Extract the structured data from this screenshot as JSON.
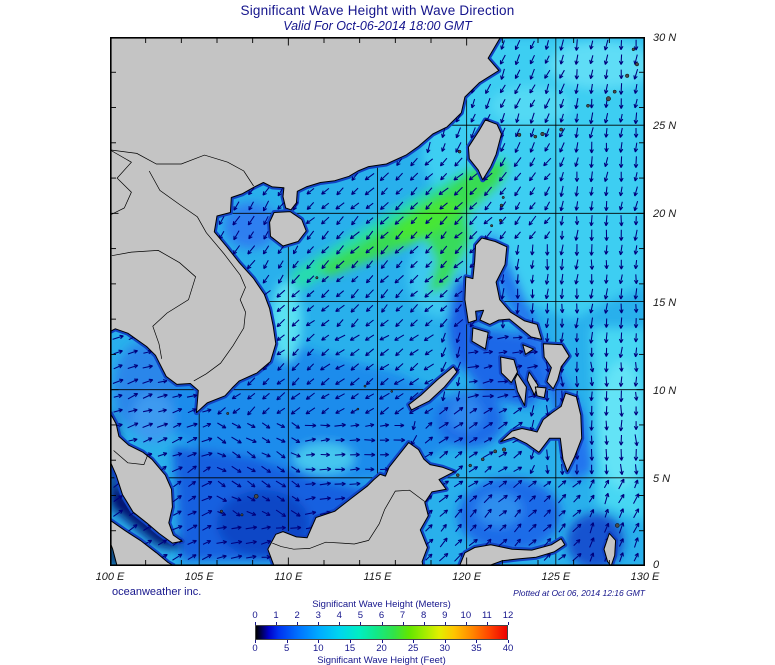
{
  "title": "Significant Wave Height with Wave Direction",
  "subtitle": "Valid For Oct-06-2014 18:00 GMT",
  "credit": "oceanweather inc.",
  "plotted_note": "Plotted at Oct 06, 2014 12:16 GMT",
  "axes": {
    "lon_labels": [
      "100 E",
      "105 E",
      "110 E",
      "115 E",
      "120 E",
      "125 E",
      "130 E"
    ],
    "lat_labels": [
      "30 N",
      "25 N",
      "20 N",
      "15 N",
      "10 N",
      "5 N",
      "0"
    ],
    "lon_range": [
      100,
      130
    ],
    "lat_range": [
      0,
      30
    ],
    "grid_step_deg": 5,
    "minor_tick_deg": 2
  },
  "colorbar": {
    "top_label": "Significant Wave Height (Meters)",
    "bottom_label": "Significant Wave Height (Feet)",
    "meters_ticks": [
      0,
      1,
      2,
      3,
      4,
      5,
      6,
      7,
      8,
      9,
      10,
      11,
      12
    ],
    "feet_ticks": [
      0,
      5,
      10,
      15,
      20,
      25,
      30,
      35,
      40
    ],
    "gradient_stops": [
      [
        0,
        "#000000"
      ],
      [
        0.02,
        "#00004a"
      ],
      [
        0.05,
        "#0000c8"
      ],
      [
        0.09,
        "#0032f0"
      ],
      [
        0.17,
        "#0073ff"
      ],
      [
        0.25,
        "#00aaff"
      ],
      [
        0.33,
        "#00d4f0"
      ],
      [
        0.41,
        "#00eec3"
      ],
      [
        0.48,
        "#12e887"
      ],
      [
        0.55,
        "#32e248"
      ],
      [
        0.61,
        "#62e600"
      ],
      [
        0.67,
        "#a0ec00"
      ],
      [
        0.73,
        "#e2ee00"
      ],
      [
        0.79,
        "#ffc400"
      ],
      [
        0.86,
        "#ff8800"
      ],
      [
        0.93,
        "#ff4400"
      ],
      [
        1,
        "#ee0000"
      ]
    ]
  },
  "map_style": {
    "land_color": "#c4c4c4",
    "land_edge": "#000000",
    "ocean_base": "#29b0ec",
    "arrow_color": "#00007d",
    "coast_shallow": "#1244c4",
    "grid_color": "#000000",
    "frame_color": "#000000",
    "axis_label_color": "#1a1a1a",
    "navy_text": "#16168c",
    "island_dot_color": "#4a4a4a"
  },
  "wave_zones": [
    {
      "area": "NE South China Sea / Luzon Strait band",
      "height_m": "4-6",
      "color": "green"
    },
    {
      "area": "East China Sea and outer Philippine Sea",
      "height_m": "2-3",
      "color": "cyan"
    },
    {
      "area": "Central South China Sea",
      "height_m": "2-3",
      "color": "cyan-blue"
    },
    {
      "area": "Gulf of Thailand and southern South China Sea",
      "height_m": "1-2",
      "color": "blue"
    },
    {
      "area": "Coastal margins and inner Philippine seas",
      "height_m": "0.5-1",
      "color": "dark blue"
    },
    {
      "area": "Malacca Strait and west of Sumatra",
      "height_m": "0-0.5",
      "color": "near black"
    }
  ],
  "arrow_field": [
    {
      "name": "gulf-of-thailand",
      "lon": [
        100,
        106
      ],
      "lat": [
        5.5,
        14
      ],
      "dir": 70
    },
    {
      "name": "south-gulf",
      "lon": [
        100,
        106
      ],
      "lat": [
        0,
        5.5
      ],
      "dir": 60
    },
    {
      "name": "sw-borneo",
      "lon": [
        106,
        110.5
      ],
      "lat": [
        2.5,
        8
      ],
      "dir": 120
    },
    {
      "name": "s-scs",
      "lon": [
        110.5,
        117
      ],
      "lat": [
        0.5,
        8
      ],
      "dir": 85
    },
    {
      "name": "karimata",
      "lon": [
        106,
        110.5
      ],
      "lat": [
        0,
        2.5
      ],
      "dir": 80
    },
    {
      "name": "gulf-of-tonkin",
      "lon": [
        104,
        111
      ],
      "lat": [
        15.5,
        22
      ],
      "dir": 215
    },
    {
      "name": "vietnam-coast",
      "lon": [
        104,
        112
      ],
      "lat": [
        8,
        15.5
      ],
      "dir": 230
    },
    {
      "name": "scs-mid",
      "lon": [
        110,
        118
      ],
      "lat": [
        8,
        13
      ],
      "dir": 235
    },
    {
      "name": "n-scs",
      "lon": [
        108,
        122
      ],
      "lat": [
        13,
        23.5
      ],
      "dir": 225
    },
    {
      "name": "taiwan-strait-ecs",
      "lon": [
        117,
        125.5
      ],
      "lat": [
        23,
        30
      ],
      "dir": 203
    },
    {
      "name": "ecs-east",
      "lon": [
        125.5,
        130
      ],
      "lat": [
        20,
        30
      ],
      "dir": 188
    },
    {
      "name": "luzon-strait",
      "lon": [
        119,
        125
      ],
      "lat": [
        18,
        23
      ],
      "dir": 215
    },
    {
      "name": "sulu-sea",
      "lon": [
        117.5,
        123
      ],
      "lat": [
        4,
        9.5
      ],
      "dir": 55
    },
    {
      "name": "visayas",
      "lon": [
        120,
        124.5
      ],
      "lat": [
        9,
        13
      ],
      "dir": 80
    },
    {
      "name": "phil-sea",
      "lon": [
        120.5,
        130
      ],
      "lat": [
        12,
        20
      ],
      "dir": 184
    },
    {
      "name": "phil-sea-s",
      "lon": [
        124.5,
        130
      ],
      "lat": [
        5,
        12
      ],
      "dir": 178
    },
    {
      "name": "celebes",
      "lon": [
        117,
        126.5
      ],
      "lat": [
        0,
        5
      ],
      "dir": 45
    },
    {
      "name": "molucca",
      "lon": [
        126.5,
        130
      ],
      "lat": [
        0,
        5
      ],
      "dir": 25
    },
    {
      "name": "default",
      "lon": [
        100,
        130
      ],
      "lat": [
        0,
        30
      ],
      "dir": 200
    }
  ]
}
